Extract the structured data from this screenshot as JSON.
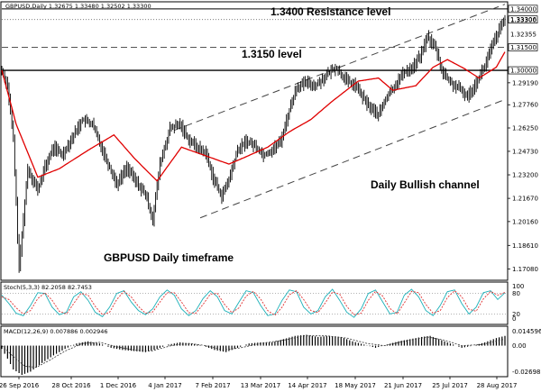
{
  "chart_data": {
    "type": "line",
    "header": "GBPUSD,Daily  1.32675 1.33480 1.32502 1.33300",
    "y_ticks": [
      "1.29190",
      "1.27760",
      "1.26250",
      "1.24730",
      "1.23200",
      "1.21670",
      "1.20160",
      "1.18610",
      "1.17080"
    ],
    "key_levels": [
      {
        "label": "1.34000",
        "value": 1.34,
        "style": "solid"
      },
      {
        "label": "1.33306",
        "value": 1.33306,
        "style": "dotted"
      },
      {
        "label": "1.33300",
        "value": 1.333,
        "style": "dotted"
      },
      {
        "label": "1.32355",
        "value": 1.32355,
        "style": "none"
      },
      {
        "label": "1.31500",
        "value": 1.315,
        "style": "dashed"
      },
      {
        "label": "1.30000",
        "value": 1.3,
        "style": "solid"
      }
    ],
    "annotations": {
      "resistance": "1.3400 Resistance level",
      "level_3150": "1.3150 level",
      "channel": "Daily Bullish channel",
      "timeframe": "GBPUSD Daily timeframe"
    },
    "x_labels": [
      "26 Sep 2016",
      "28 Oct 2016",
      "1 Dec 2016",
      "4 Jan 2017",
      "7 Feb 2017",
      "13 Mar 2017",
      "14 Apr 2017",
      "18 May 2017",
      "21 Jun 2017",
      "25 Jul 2017",
      "28 Aug 2017"
    ],
    "ylim": [
      1.164,
      1.344
    ],
    "ma_anchors": [
      [
        0,
        1.3
      ],
      [
        10,
        1.265
      ],
      [
        25,
        1.2305
      ],
      [
        40,
        1.236
      ],
      [
        60,
        1.248
      ],
      [
        78,
        1.258
      ],
      [
        92,
        1.243
      ],
      [
        108,
        1.228
      ],
      [
        125,
        1.25
      ],
      [
        140,
        1.245
      ],
      [
        158,
        1.239
      ],
      [
        168,
        1.243
      ],
      [
        185,
        1.25
      ],
      [
        200,
        1.26
      ],
      [
        215,
        1.268
      ],
      [
        230,
        1.28
      ],
      [
        248,
        1.293
      ],
      [
        262,
        1.295
      ],
      [
        272,
        1.287
      ],
      [
        288,
        1.29
      ],
      [
        300,
        1.302
      ],
      [
        310,
        1.307
      ],
      [
        322,
        1.301
      ],
      [
        332,
        1.295
      ],
      [
        344,
        1.302
      ],
      [
        350,
        1.312
      ]
    ],
    "price_anchors": [
      [
        0,
        1.3
      ],
      [
        4,
        1.29
      ],
      [
        8,
        1.255
      ],
      [
        12,
        1.171
      ],
      [
        18,
        1.236
      ],
      [
        25,
        1.222
      ],
      [
        30,
        1.237
      ],
      [
        36,
        1.25
      ],
      [
        42,
        1.245
      ],
      [
        50,
        1.258
      ],
      [
        56,
        1.268
      ],
      [
        63,
        1.265
      ],
      [
        68,
        1.253
      ],
      [
        74,
        1.239
      ],
      [
        80,
        1.226
      ],
      [
        87,
        1.237
      ],
      [
        93,
        1.228
      ],
      [
        100,
        1.219
      ],
      [
        105,
        1.203
      ],
      [
        110,
        1.239
      ],
      [
        117,
        1.262
      ],
      [
        124,
        1.265
      ],
      [
        130,
        1.255
      ],
      [
        136,
        1.25
      ],
      [
        142,
        1.246
      ],
      [
        147,
        1.23
      ],
      [
        153,
        1.218
      ],
      [
        158,
        1.229
      ],
      [
        164,
        1.248
      ],
      [
        170,
        1.254
      ],
      [
        176,
        1.251
      ],
      [
        182,
        1.245
      ],
      [
        188,
        1.248
      ],
      [
        194,
        1.254
      ],
      [
        200,
        1.274
      ],
      [
        205,
        1.289
      ],
      [
        212,
        1.292
      ],
      [
        218,
        1.29
      ],
      [
        226,
        1.297
      ],
      [
        232,
        1.302
      ],
      [
        240,
        1.293
      ],
      [
        246,
        1.29
      ],
      [
        252,
        1.281
      ],
      [
        256,
        1.276
      ],
      [
        262,
        1.271
      ],
      [
        268,
        1.283
      ],
      [
        274,
        1.291
      ],
      [
        280,
        1.299
      ],
      [
        286,
        1.302
      ],
      [
        292,
        1.311
      ],
      [
        296,
        1.322
      ],
      [
        302,
        1.314
      ],
      [
        306,
        1.3
      ],
      [
        312,
        1.292
      ],
      [
        318,
        1.288
      ],
      [
        324,
        1.283
      ],
      [
        330,
        1.292
      ],
      [
        336,
        1.303
      ],
      [
        342,
        1.318
      ],
      [
        348,
        1.33
      ],
      [
        350,
        1.333
      ]
    ],
    "channel_lines": {
      "upper": [
        [
          120,
          1.261
        ],
        [
          350,
          1.343
        ]
      ],
      "lower": [
        [
          138,
          1.204
        ],
        [
          350,
          1.281
        ]
      ]
    },
    "stoch": {
      "header": "Stoch(5,3,3) 82.2058 82.7453",
      "ticks": [
        "100",
        "80",
        "20",
        "0"
      ],
      "main": [
        75,
        50,
        22,
        15,
        45,
        82,
        80,
        40,
        18,
        25,
        70,
        85,
        60,
        25,
        12,
        40,
        80,
        88,
        55,
        30,
        18,
        35,
        70,
        90,
        75,
        35,
        15,
        30,
        65,
        88,
        70,
        30,
        20,
        55,
        88,
        82,
        45,
        15,
        20,
        60,
        90,
        85,
        40,
        20,
        30,
        70,
        92,
        60,
        25,
        10,
        35,
        80,
        90,
        55,
        20,
        25,
        75,
        92,
        70,
        30,
        15,
        45,
        85,
        90,
        50,
        20,
        40,
        82,
        88,
        62,
        82
      ],
      "signal": [
        70,
        62,
        38,
        20,
        30,
        65,
        82,
        60,
        28,
        20,
        50,
        80,
        75,
        42,
        18,
        25,
        62,
        86,
        70,
        42,
        22,
        26,
        55,
        82,
        82,
        55,
        24,
        22,
        48,
        78,
        80,
        48,
        24,
        38,
        72,
        86,
        64,
        30,
        16,
        40,
        76,
        88,
        62,
        30,
        24,
        52,
        84,
        78,
        42,
        18,
        22,
        60,
        86,
        72,
        36,
        20,
        52,
        86,
        82,
        48,
        22,
        30,
        68,
        88,
        70,
        34,
        28,
        64,
        86,
        75,
        83
      ]
    },
    "macd": {
      "header": "MACD(12,26,9) 0.007886 0.002946",
      "ticks": [
        "0.014596",
        "0.00",
        "-0.026987"
      ],
      "hist_anchors": [
        [
          0,
          -0.003
        ],
        [
          4,
          -0.012
        ],
        [
          8,
          -0.022
        ],
        [
          14,
          -0.027
        ],
        [
          20,
          -0.024
        ],
        [
          28,
          -0.016
        ],
        [
          36,
          -0.009
        ],
        [
          44,
          -0.003
        ],
        [
          52,
          0.002
        ],
        [
          60,
          0.004
        ],
        [
          68,
          0.002
        ],
        [
          76,
          -0.002
        ],
        [
          84,
          -0.004
        ],
        [
          92,
          -0.005
        ],
        [
          100,
          -0.006
        ],
        [
          108,
          -0.003
        ],
        [
          116,
          0.001
        ],
        [
          124,
          0.003
        ],
        [
          132,
          0.002
        ],
        [
          140,
          0.0
        ],
        [
          148,
          -0.004
        ],
        [
          156,
          -0.006
        ],
        [
          164,
          -0.002
        ],
        [
          172,
          0.002
        ],
        [
          180,
          0.003
        ],
        [
          188,
          0.003
        ],
        [
          196,
          0.006
        ],
        [
          204,
          0.009
        ],
        [
          212,
          0.01
        ],
        [
          220,
          0.008
        ],
        [
          228,
          0.009
        ],
        [
          236,
          0.008
        ],
        [
          244,
          0.004
        ],
        [
          252,
          0.001
        ],
        [
          260,
          -0.002
        ],
        [
          268,
          0.001
        ],
        [
          276,
          0.004
        ],
        [
          284,
          0.006
        ],
        [
          292,
          0.008
        ],
        [
          298,
          0.009
        ],
        [
          304,
          0.006
        ],
        [
          312,
          0.002
        ],
        [
          320,
          -0.002
        ],
        [
          328,
          0.0
        ],
        [
          336,
          0.003
        ],
        [
          344,
          0.007
        ],
        [
          350,
          0.009
        ]
      ],
      "signal_anchors": [
        [
          0,
          0.0
        ],
        [
          8,
          -0.01
        ],
        [
          16,
          -0.019
        ],
        [
          24,
          -0.02
        ],
        [
          34,
          -0.013
        ],
        [
          44,
          -0.005
        ],
        [
          56,
          0.002
        ],
        [
          68,
          0.003
        ],
        [
          80,
          -0.001
        ],
        [
          92,
          -0.004
        ],
        [
          104,
          -0.005
        ],
        [
          118,
          0.0
        ],
        [
          130,
          0.002
        ],
        [
          142,
          0.0
        ],
        [
          154,
          -0.004
        ],
        [
          166,
          -0.002
        ],
        [
          180,
          0.002
        ],
        [
          196,
          0.005
        ],
        [
          210,
          0.009
        ],
        [
          226,
          0.009
        ],
        [
          240,
          0.007
        ],
        [
          254,
          0.002
        ],
        [
          266,
          0.0
        ],
        [
          280,
          0.004
        ],
        [
          296,
          0.008
        ],
        [
          308,
          0.005
        ],
        [
          320,
          0.0
        ],
        [
          334,
          0.001
        ],
        [
          350,
          0.006
        ]
      ]
    }
  }
}
